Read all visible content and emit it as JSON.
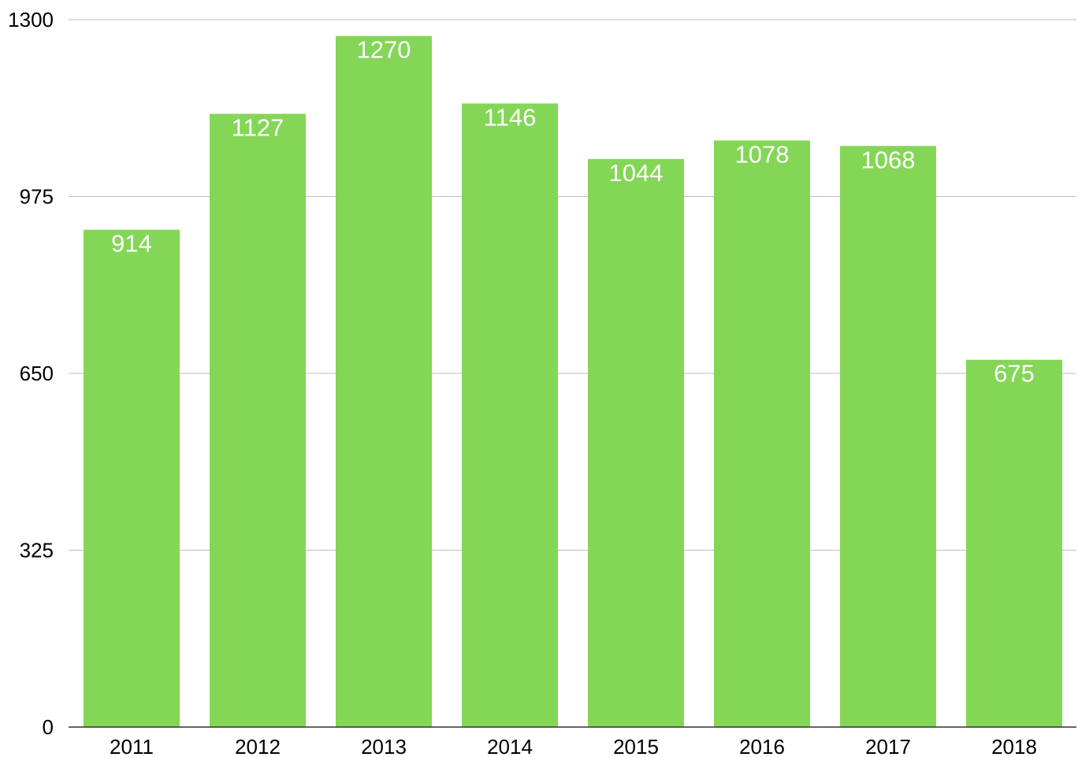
{
  "colors": {
    "bar": "#84d657",
    "background": "#ffffff",
    "grid": "#bfbfbf",
    "data_label": "#ffffff"
  },
  "chart_data": {
    "type": "bar",
    "title": "",
    "xlabel": "",
    "ylabel": "",
    "categories": [
      "2011",
      "2012",
      "2013",
      "2014",
      "2015",
      "2016",
      "2017",
      "2018"
    ],
    "values": [
      914,
      1127,
      1270,
      1146,
      1044,
      1078,
      1068,
      675
    ],
    "ylim": [
      0,
      1300
    ],
    "yticks": [
      0,
      325,
      650,
      975,
      1300
    ],
    "grid": true,
    "legend": "none",
    "data_labels": true
  }
}
